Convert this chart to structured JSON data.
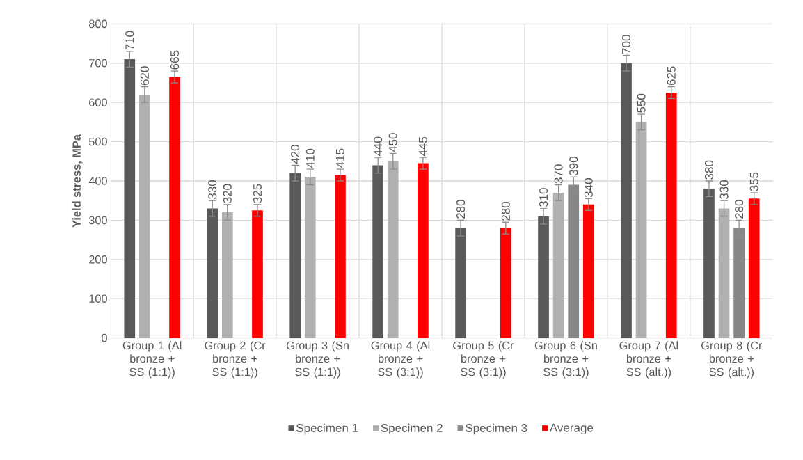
{
  "chart_data": {
    "type": "bar",
    "ylabel": "Yield stress, MPa",
    "categories": [
      "Group 1 (Al bronze + SS (1:1))",
      "Group 2 (Cr bronze + SS (1:1))",
      "Group 3 (Sn bronze + SS (1:1))",
      "Group 4 (Al bronze + SS (3:1))",
      "Group 5 (Cr bronze + SS (3:1))",
      "Group 6 (Sn bronze + SS (3:1))",
      "Group 7 (Al bronze + SS (alt.))",
      "Group 8 (Cr bronze + SS (alt.))"
    ],
    "series": [
      {
        "name": "Specimen 1",
        "color": "#595959",
        "values": [
          710,
          330,
          420,
          440,
          280,
          310,
          700,
          380
        ],
        "errors": [
          20,
          20,
          20,
          20,
          20,
          20,
          20,
          20
        ]
      },
      {
        "name": "Specimen 2",
        "color": "#b0b0b0",
        "values": [
          620,
          320,
          410,
          450,
          null,
          370,
          550,
          330
        ],
        "errors": [
          20,
          20,
          20,
          20,
          null,
          20,
          20,
          20
        ]
      },
      {
        "name": "Specimen 3",
        "color": "#878787",
        "values": [
          null,
          null,
          null,
          null,
          null,
          390,
          null,
          280
        ],
        "errors": [
          null,
          null,
          null,
          null,
          null,
          20,
          null,
          20
        ]
      },
      {
        "name": "Average",
        "color": "#ff0000",
        "values": [
          665,
          325,
          415,
          445,
          280,
          340,
          625,
          355
        ],
        "errors": [
          15,
          15,
          15,
          15,
          15,
          15,
          15,
          15
        ]
      }
    ],
    "ylim": [
      0,
      800
    ],
    "yticks": [
      0,
      100,
      200,
      300,
      400,
      500,
      600,
      700,
      800
    ],
    "data_labels": true,
    "grid": true,
    "legend": "bottom"
  }
}
